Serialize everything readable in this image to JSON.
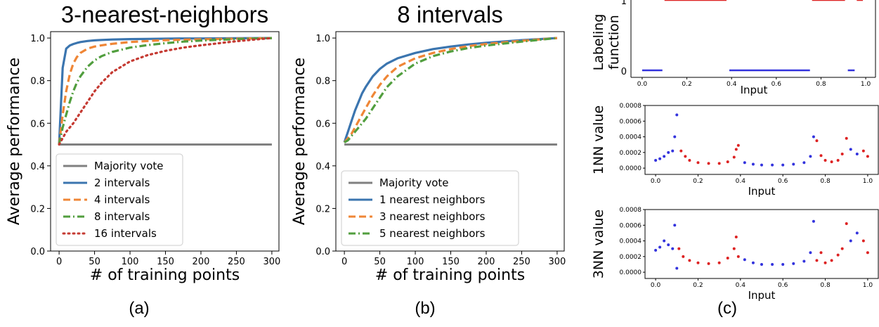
{
  "captions": [
    "(a)",
    "(b)",
    "(c)"
  ],
  "chart_data": [
    {
      "type": "line",
      "title": "3-nearest-neighbors",
      "xlabel": "# of training points",
      "ylabel": "Average performance",
      "xlim": [
        -12,
        310
      ],
      "ylim": [
        0.0,
        1.03
      ],
      "xticks": [
        0,
        50,
        100,
        150,
        200,
        250,
        300
      ],
      "yticks": [
        0.0,
        0.2,
        0.4,
        0.6,
        0.8,
        1.0
      ],
      "ytick_labels": [
        "0.0",
        "0.2",
        "0.4",
        "0.6",
        "0.8",
        "1.0"
      ],
      "legend_position": "lower-right",
      "x": [
        0,
        5,
        10,
        15,
        20,
        25,
        30,
        40,
        50,
        60,
        75,
        100,
        125,
        150,
        175,
        200,
        250,
        300
      ],
      "series": [
        {
          "name": "Majority vote",
          "color": "#808080",
          "style": "solid",
          "values": [
            0.5,
            0.5,
            0.5,
            0.5,
            0.5,
            0.5,
            0.5,
            0.5,
            0.5,
            0.5,
            0.5,
            0.5,
            0.5,
            0.5,
            0.5,
            0.5,
            0.5,
            0.5
          ]
        },
        {
          "name": "2 intervals",
          "color": "#3b75af",
          "style": "solid",
          "values": [
            0.5,
            0.86,
            0.95,
            0.965,
            0.972,
            0.977,
            0.981,
            0.986,
            0.989,
            0.991,
            0.993,
            0.995,
            0.996,
            0.997,
            0.998,
            0.998,
            0.999,
            1.0
          ]
        },
        {
          "name": "4 intervals",
          "color": "#ef8636",
          "style": "dashed",
          "values": [
            0.5,
            0.64,
            0.75,
            0.83,
            0.88,
            0.91,
            0.93,
            0.95,
            0.96,
            0.966,
            0.973,
            0.981,
            0.986,
            0.99,
            0.992,
            0.994,
            0.997,
            1.0
          ]
        },
        {
          "name": "8 intervals",
          "color": "#519e3e",
          "style": "dashdot",
          "values": [
            0.5,
            0.58,
            0.64,
            0.7,
            0.75,
            0.79,
            0.82,
            0.865,
            0.895,
            0.915,
            0.935,
            0.955,
            0.967,
            0.976,
            0.983,
            0.988,
            0.995,
            1.0
          ]
        },
        {
          "name": "16 intervals",
          "color": "#c53a32",
          "style": "dotted",
          "values": [
            0.5,
            0.53,
            0.56,
            0.58,
            0.6,
            0.625,
            0.65,
            0.7,
            0.75,
            0.79,
            0.84,
            0.89,
            0.92,
            0.94,
            0.955,
            0.966,
            0.985,
            1.0
          ]
        }
      ]
    },
    {
      "type": "line",
      "title": "8 intervals",
      "xlabel": "# of training points",
      "ylabel": "Average performance",
      "xlim": [
        -12,
        310
      ],
      "ylim": [
        0.0,
        1.03
      ],
      "xticks": [
        0,
        50,
        100,
        150,
        200,
        250,
        300
      ],
      "yticks": [
        0.0,
        0.2,
        0.4,
        0.6,
        0.8,
        1.0
      ],
      "ytick_labels": [
        "0.0",
        "0.2",
        "0.4",
        "0.6",
        "0.8",
        "1.0"
      ],
      "legend_position": "lower-right",
      "x": [
        0,
        5,
        10,
        15,
        20,
        25,
        30,
        40,
        50,
        60,
        75,
        100,
        125,
        150,
        175,
        200,
        250,
        300
      ],
      "series": [
        {
          "name": "Majority vote",
          "color": "#808080",
          "style": "solid",
          "values": [
            0.5,
            0.5,
            0.5,
            0.5,
            0.5,
            0.5,
            0.5,
            0.5,
            0.5,
            0.5,
            0.5,
            0.5,
            0.5,
            0.5,
            0.5,
            0.5,
            0.5,
            0.5
          ]
        },
        {
          "name": "1 nearest neighbors",
          "color": "#3b75af",
          "style": "solid",
          "values": [
            0.51,
            0.56,
            0.61,
            0.66,
            0.7,
            0.74,
            0.77,
            0.82,
            0.855,
            0.88,
            0.905,
            0.93,
            0.948,
            0.96,
            0.97,
            0.978,
            0.99,
            1.0
          ]
        },
        {
          "name": "3 nearest neighbors",
          "color": "#ef8636",
          "style": "dashed",
          "values": [
            0.51,
            0.53,
            0.55,
            0.58,
            0.61,
            0.64,
            0.67,
            0.73,
            0.78,
            0.82,
            0.865,
            0.905,
            0.93,
            0.948,
            0.962,
            0.972,
            0.987,
            1.0
          ]
        },
        {
          "name": "5 nearest neighbors",
          "color": "#519e3e",
          "style": "dashdot",
          "values": [
            0.51,
            0.52,
            0.54,
            0.56,
            0.58,
            0.6,
            0.62,
            0.67,
            0.72,
            0.77,
            0.82,
            0.88,
            0.915,
            0.937,
            0.953,
            0.965,
            0.983,
            1.0
          ]
        }
      ]
    },
    {
      "type": "line",
      "title": "",
      "xlabel": "Input",
      "ylabel_lines": [
        "Labeling",
        "function"
      ],
      "xlim": [
        -0.05,
        1.05
      ],
      "ylim": [
        -0.1,
        1.0
      ],
      "xticks": [
        0.0,
        0.2,
        0.4,
        0.6,
        0.8,
        1.0
      ],
      "xtick_labels": [
        "0.0",
        "0.2",
        "0.4",
        "0.6",
        "0.8",
        "1.0"
      ],
      "ytick_labels": [
        "0",
        "1"
      ],
      "segments": [
        {
          "label": 0,
          "x0": 0.0,
          "x1": 0.1
        },
        {
          "label": 1,
          "x0": 0.1,
          "x1": 0.39
        },
        {
          "label": 0,
          "x0": 0.39,
          "x1": 0.76
        },
        {
          "label": 1,
          "x0": 0.76,
          "x1": 0.92
        },
        {
          "label": 0,
          "x0": 0.92,
          "x1": 0.96
        },
        {
          "label": 1,
          "x0": 0.96,
          "x1": 1.0
        }
      ],
      "colors": {
        "0": "#3333dd",
        "1": "#dd2222"
      }
    },
    {
      "type": "scatter",
      "title": "",
      "xlabel": "Input",
      "ylabel": "1NN value",
      "xlim": [
        -0.05,
        1.05
      ],
      "ylim": [
        -8e-05,
        0.0008
      ],
      "xticks": [
        0.0,
        0.2,
        0.4,
        0.6,
        0.8,
        1.0
      ],
      "xtick_labels": [
        "0.0",
        "0.2",
        "0.4",
        "0.6",
        "0.8",
        "1.0"
      ],
      "yticks": [
        0.0,
        0.0002,
        0.0004,
        0.0006,
        0.0008
      ],
      "ytick_labels": [
        "0.0000",
        "0.0002",
        "0.0004",
        "0.0006",
        "0.0008"
      ],
      "x": [
        0.0,
        0.02,
        0.04,
        0.06,
        0.08,
        0.09,
        0.1,
        0.12,
        0.14,
        0.16,
        0.2,
        0.25,
        0.3,
        0.34,
        0.37,
        0.38,
        0.39,
        0.42,
        0.46,
        0.5,
        0.55,
        0.6,
        0.65,
        0.7,
        0.73,
        0.745,
        0.76,
        0.78,
        0.8,
        0.83,
        0.86,
        0.88,
        0.9,
        0.92,
        0.95,
        0.98,
        1.0
      ],
      "values": [
        0.0001,
        0.00012,
        0.00015,
        0.0002,
        0.00022,
        0.0004,
        0.00068,
        0.00022,
        0.00015,
        0.0001,
        7e-05,
        6e-05,
        6e-05,
        8e-05,
        0.00014,
        0.00024,
        0.00029,
        7e-05,
        5e-05,
        4e-05,
        4e-05,
        4e-05,
        5e-05,
        7e-05,
        0.00015,
        0.0004,
        0.00035,
        0.00016,
        0.0001,
        8e-05,
        0.0001,
        0.00018,
        0.00038,
        0.00024,
        0.00018,
        0.00022,
        0.00015
      ],
      "point_labels": [
        0,
        0,
        0,
        0,
        0,
        0,
        0,
        1,
        1,
        1,
        1,
        1,
        1,
        1,
        1,
        1,
        1,
        0,
        0,
        0,
        0,
        0,
        0,
        0,
        0,
        0,
        1,
        1,
        1,
        1,
        1,
        1,
        1,
        0,
        0,
        1,
        1
      ],
      "colors": {
        "0": "#3333dd",
        "1": "#dd2222"
      }
    },
    {
      "type": "scatter",
      "title": "",
      "xlabel": "Input",
      "ylabel": "3NN value",
      "xlim": [
        -0.05,
        1.05
      ],
      "ylim": [
        -8e-05,
        0.0008
      ],
      "xticks": [
        0.0,
        0.2,
        0.4,
        0.6,
        0.8,
        1.0
      ],
      "xtick_labels": [
        "0.0",
        "0.2",
        "0.4",
        "0.6",
        "0.8",
        "1.0"
      ],
      "yticks": [
        0.0,
        0.0002,
        0.0004,
        0.0006,
        0.0008
      ],
      "ytick_labels": [
        "0.0000",
        "0.0002",
        "0.0004",
        "0.0006",
        "0.0008"
      ],
      "x": [
        0.0,
        0.02,
        0.04,
        0.06,
        0.08,
        0.09,
        0.1,
        0.11,
        0.13,
        0.16,
        0.2,
        0.25,
        0.3,
        0.34,
        0.37,
        0.38,
        0.39,
        0.42,
        0.46,
        0.5,
        0.55,
        0.6,
        0.65,
        0.7,
        0.73,
        0.745,
        0.76,
        0.78,
        0.8,
        0.83,
        0.86,
        0.88,
        0.9,
        0.92,
        0.95,
        0.98,
        1.0
      ],
      "values": [
        0.00028,
        0.00032,
        0.0004,
        0.00035,
        0.0003,
        0.0006,
        5e-05,
        0.0003,
        0.0002,
        0.00015,
        0.00012,
        0.00011,
        0.00012,
        0.00018,
        0.0003,
        0.00045,
        0.0002,
        0.00016,
        0.00012,
        0.0001,
        0.0001,
        0.0001,
        0.00011,
        0.00014,
        0.00025,
        0.00065,
        0.00015,
        0.00025,
        0.00012,
        0.00015,
        0.00022,
        0.0003,
        0.00062,
        0.0004,
        0.0005,
        0.0004,
        0.00025
      ],
      "point_labels": [
        0,
        0,
        0,
        0,
        0,
        0,
        0,
        1,
        1,
        1,
        1,
        1,
        1,
        1,
        1,
        1,
        1,
        0,
        0,
        0,
        0,
        0,
        0,
        0,
        0,
        0,
        1,
        1,
        1,
        1,
        1,
        1,
        1,
        0,
        0,
        1,
        1
      ],
      "colors": {
        "0": "#3333dd",
        "1": "#dd2222"
      }
    }
  ]
}
